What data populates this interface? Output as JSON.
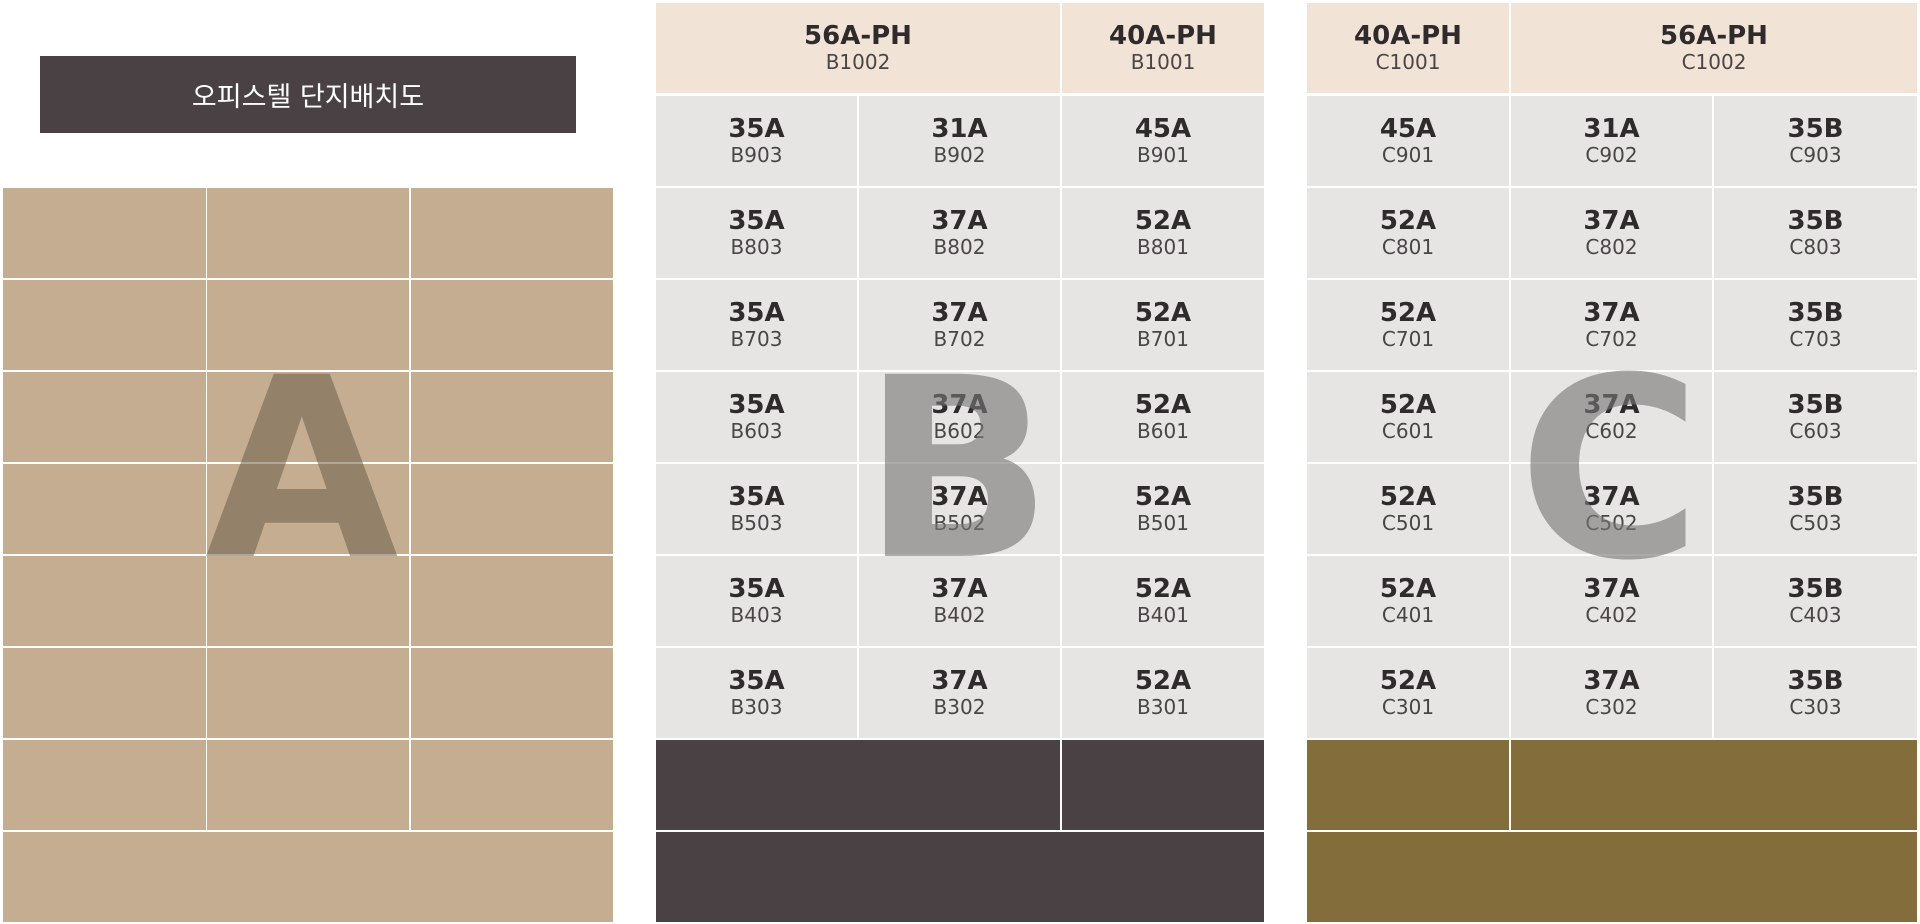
{
  "title": "오피스텔 단지배치도",
  "colors": {
    "title_bg": "#4a4145",
    "building_a": "#c4ad91",
    "unit_cell": "#e6e5e3",
    "penthouse_cell": "#f1e3d6",
    "building_b_base": "#4a4145",
    "building_c_base": "#826d3b"
  },
  "buildings": {
    "a": {
      "letter": "A"
    },
    "b": {
      "letter": "B",
      "penthouse": [
        {
          "type": "56A-PH",
          "code": "B1002"
        },
        {
          "type": "40A-PH",
          "code": "B1001"
        }
      ],
      "floors": [
        [
          {
            "type": "35A",
            "code": "B903"
          },
          {
            "type": "31A",
            "code": "B902"
          },
          {
            "type": "45A",
            "code": "B901"
          }
        ],
        [
          {
            "type": "35A",
            "code": "B803"
          },
          {
            "type": "37A",
            "code": "B802"
          },
          {
            "type": "52A",
            "code": "B801"
          }
        ],
        [
          {
            "type": "35A",
            "code": "B703"
          },
          {
            "type": "37A",
            "code": "B702"
          },
          {
            "type": "52A",
            "code": "B701"
          }
        ],
        [
          {
            "type": "35A",
            "code": "B603"
          },
          {
            "type": "37A",
            "code": "B602"
          },
          {
            "type": "52A",
            "code": "B601"
          }
        ],
        [
          {
            "type": "35A",
            "code": "B503"
          },
          {
            "type": "37A",
            "code": "B502"
          },
          {
            "type": "52A",
            "code": "B501"
          }
        ],
        [
          {
            "type": "35A",
            "code": "B403"
          },
          {
            "type": "37A",
            "code": "B402"
          },
          {
            "type": "52A",
            "code": "B401"
          }
        ],
        [
          {
            "type": "35A",
            "code": "B303"
          },
          {
            "type": "37A",
            "code": "B302"
          },
          {
            "type": "52A",
            "code": "B301"
          }
        ]
      ]
    },
    "c": {
      "letter": "C",
      "penthouse": [
        {
          "type": "40A-PH",
          "code": "C1001"
        },
        {
          "type": "56A-PH",
          "code": "C1002"
        }
      ],
      "floors": [
        [
          {
            "type": "45A",
            "code": "C901"
          },
          {
            "type": "31A",
            "code": "C902"
          },
          {
            "type": "35B",
            "code": "C903"
          }
        ],
        [
          {
            "type": "52A",
            "code": "C801"
          },
          {
            "type": "37A",
            "code": "C802"
          },
          {
            "type": "35B",
            "code": "C803"
          }
        ],
        [
          {
            "type": "52A",
            "code": "C701"
          },
          {
            "type": "37A",
            "code": "C702"
          },
          {
            "type": "35B",
            "code": "C703"
          }
        ],
        [
          {
            "type": "52A",
            "code": "C601"
          },
          {
            "type": "37A",
            "code": "C602"
          },
          {
            "type": "35B",
            "code": "C603"
          }
        ],
        [
          {
            "type": "52A",
            "code": "C501"
          },
          {
            "type": "37A",
            "code": "C502"
          },
          {
            "type": "35B",
            "code": "C503"
          }
        ],
        [
          {
            "type": "52A",
            "code": "C401"
          },
          {
            "type": "37A",
            "code": "C402"
          },
          {
            "type": "35B",
            "code": "C403"
          }
        ],
        [
          {
            "type": "52A",
            "code": "C301"
          },
          {
            "type": "37A",
            "code": "C302"
          },
          {
            "type": "35B",
            "code": "C303"
          }
        ]
      ]
    }
  }
}
